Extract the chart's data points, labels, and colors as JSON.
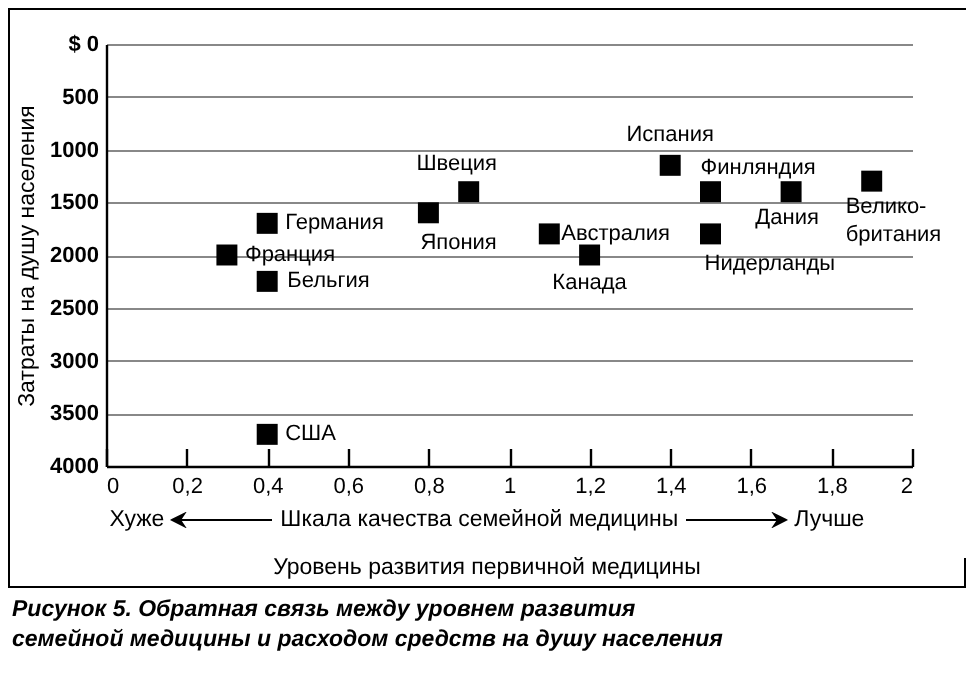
{
  "chart_data": {
    "type": "scatter",
    "title": "Рисунок 5. Обратная связь между уровнем развития семейной медицины и расходом средств на душу населения",
    "xlabel": "Уровень развития первичной медицины",
    "ylabel": "Затраты на душу населения",
    "annotations": [
      "Хуже",
      "Шкала качества семейной медицины",
      "Лучше"
    ],
    "xlim": [
      0,
      2
    ],
    "xticks": [
      0,
      {
        "value": 0.2,
        "label": "0,2"
      },
      {
        "value": 0.4,
        "label": "0,4"
      },
      {
        "value": 0.6,
        "label": "0,6"
      },
      {
        "value": 0.8,
        "label": "0,8"
      },
      1,
      {
        "value": 1.2,
        "label": "1,2"
      },
      {
        "value": 1.4,
        "label": "1,4"
      },
      {
        "value": 1.6,
        "label": "1,6"
      },
      {
        "value": 1.8,
        "label": "1,8"
      },
      2
    ],
    "ylim": [
      4000,
      0
    ],
    "yticks": [
      {
        "value": 0,
        "label": "$ 0"
      },
      500,
      1000,
      1500,
      2000,
      2500,
      3000,
      3500,
      4000
    ],
    "grid": "y",
    "marker": "square",
    "series": [
      {
        "name": "Германия",
        "color": "#000000",
        "x": [
          0.4
        ],
        "values": [
          1700
        ]
      },
      {
        "name": "Франция",
        "color": "#000000",
        "x": [
          0.3
        ],
        "values": [
          2000
        ]
      },
      {
        "name": "Бельгия",
        "color": "#000000",
        "x": [
          0.4
        ],
        "values": [
          2250
        ]
      },
      {
        "name": "США",
        "color": "#000000",
        "x": [
          0.4
        ],
        "values": [
          3700
        ]
      },
      {
        "name": "Япония",
        "color": "#000000",
        "x": [
          0.8
        ],
        "values": [
          1600
        ]
      },
      {
        "name": "Швеция",
        "color": "#000000",
        "x": [
          0.9
        ],
        "values": [
          1400
        ]
      },
      {
        "name": "Австралия",
        "color": "#000000",
        "x": [
          1.1
        ],
        "values": [
          1800
        ]
      },
      {
        "name": "Канада",
        "color": "#000000",
        "x": [
          1.2
        ],
        "values": [
          2000
        ]
      },
      {
        "name": "Испания",
        "color": "#000000",
        "x": [
          1.4
        ],
        "values": [
          1150
        ]
      },
      {
        "name": "Финляндия",
        "color": "#000000",
        "x": [
          1.5
        ],
        "values": [
          1400
        ]
      },
      {
        "name": "Нидерланды",
        "color": "#000000",
        "x": [
          1.5
        ],
        "values": [
          1800
        ]
      },
      {
        "name": "Дания",
        "color": "#000000",
        "x": [
          1.7
        ],
        "values": [
          1400
        ]
      },
      {
        "name": "Велико-\nбритания",
        "color": "#000000",
        "x": [
          1.9
        ],
        "values": [
          1300
        ]
      }
    ]
  }
}
